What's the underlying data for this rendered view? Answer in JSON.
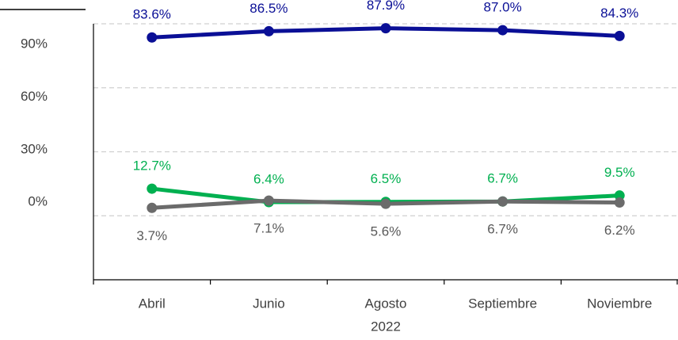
{
  "chart_data": {
    "type": "line",
    "categories": [
      "Abril",
      "Junio",
      "Agosto",
      "Septiembre",
      "Noviembre"
    ],
    "x_label": "2022",
    "series": [
      {
        "color": "#0a0f96",
        "values": [
          83.6,
          86.5,
          87.9,
          87.0,
          84.3
        ],
        "value_labels": [
          "83.6%",
          "86.5%",
          "87.9%",
          "87.0%",
          "84.3%"
        ]
      },
      {
        "color": "#00b050",
        "values": [
          12.7,
          6.4,
          6.5,
          6.7,
          9.5
        ],
        "value_labels": [
          "12.7%",
          "6.4%",
          "6.5%",
          "6.7%",
          "9.5%"
        ]
      },
      {
        "color": "#6b6b6b",
        "values": [
          3.7,
          7.1,
          5.6,
          6.7,
          6.2
        ],
        "value_labels": [
          "3.7%",
          "7.1%",
          "5.6%",
          "6.7%",
          "6.2%"
        ]
      }
    ],
    "ylim": [
      -30,
      90
    ],
    "yticks": [
      {
        "value": 0,
        "label": "0%"
      },
      {
        "value": 30,
        "label": "30%"
      },
      {
        "value": 60,
        "label": "60%"
      },
      {
        "value": 90,
        "label": "90%"
      }
    ],
    "grid": true
  }
}
